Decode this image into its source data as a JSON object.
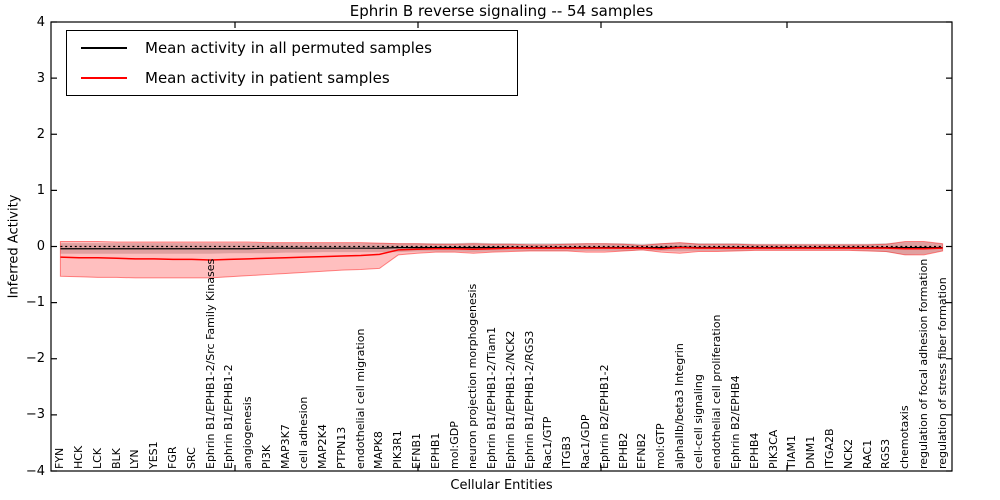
{
  "chart_data": {
    "type": "line",
    "title": "Ephrin B reverse signaling -- 54 samples",
    "xlabel": "Cellular Entities",
    "ylabel": "Inferred Activity",
    "ylim": [
      -4,
      4
    ],
    "yticks": [
      4,
      3,
      2,
      1,
      0,
      -1,
      -2,
      -3,
      -4
    ],
    "grid": false,
    "legend_position": "upper left",
    "colors": {
      "permuted_line": "#000000",
      "patient_line": "#ff0000",
      "permuted_band": "rgba(0,0,0,0.16)",
      "patient_band": "rgba(255,0,0,0.25)",
      "patient_band_edge": "rgba(255,0,0,0.45)"
    },
    "categories": [
      "FYN",
      "HCK",
      "LCK",
      "BLK",
      "LYN",
      "YES1",
      "FGR",
      "SRC",
      "Ephrin B1/EPHB1-2/Src Family Kinases",
      "Ephrin B1/EPHB1-2",
      "angiogenesis",
      "PI3K",
      "MAP3K7",
      "cell adhesion",
      "MAP2K4",
      "PTPN13",
      "endothelial cell migration",
      "MAPK8",
      "PIK3R1",
      "EFNB1",
      "EPHB1",
      "mol:GDP",
      "neuron projection morphogenesis",
      "Ephrin B1/EPHB1-2/Tiam1",
      "Ephrin B1/EPHB1-2/NCK2",
      "Ephrin B1/EPHB1-2/RGS3",
      "Rac1/GTP",
      "ITGB3",
      "Rac1/GDP",
      "Ephrin B2/EPHB1-2",
      "EPHB2",
      "EFNB2",
      "mol:GTP",
      "alphaIIb/beta3 Integrin",
      "cell-cell signaling",
      "endothelial cell proliferation",
      "Ephrin B2/EPHB4",
      "EPHB4",
      "PIK3CA",
      "TIAM1",
      "DNM1",
      "ITGA2B",
      "NCK2",
      "RAC1",
      "RGS3",
      "chemotaxis",
      "regulation of focal adhesion formation",
      "regulation of stress fiber formation"
    ],
    "series": [
      {
        "name": "Mean activity in all permuted samples",
        "color": "#000000",
        "values": [
          -0.04,
          -0.04,
          -0.04,
          -0.04,
          -0.04,
          -0.04,
          -0.04,
          -0.04,
          -0.04,
          -0.04,
          -0.04,
          -0.03,
          -0.03,
          -0.03,
          -0.03,
          -0.03,
          -0.03,
          -0.03,
          -0.02,
          -0.02,
          -0.02,
          -0.02,
          -0.02,
          -0.02,
          -0.02,
          -0.02,
          -0.02,
          -0.02,
          -0.02,
          -0.02,
          -0.02,
          -0.02,
          -0.02,
          -0.01,
          -0.02,
          -0.02,
          -0.02,
          -0.02,
          -0.02,
          -0.02,
          -0.02,
          -0.02,
          -0.02,
          -0.02,
          -0.02,
          -0.02,
          -0.02,
          -0.02
        ]
      },
      {
        "name": "Mean activity in patient samples",
        "color": "#ff0000",
        "values": [
          -0.19,
          -0.2,
          -0.2,
          -0.21,
          -0.22,
          -0.22,
          -0.23,
          -0.23,
          -0.24,
          -0.23,
          -0.22,
          -0.21,
          -0.2,
          -0.19,
          -0.18,
          -0.17,
          -0.16,
          -0.14,
          -0.06,
          -0.05,
          -0.04,
          -0.04,
          -0.05,
          -0.04,
          -0.03,
          -0.03,
          -0.03,
          -0.03,
          -0.03,
          -0.03,
          -0.03,
          -0.03,
          -0.04,
          -0.02,
          -0.03,
          -0.03,
          -0.03,
          -0.03,
          -0.03,
          -0.03,
          -0.03,
          -0.03,
          -0.03,
          -0.03,
          -0.03,
          -0.04,
          -0.04,
          -0.03
        ]
      }
    ],
    "bands": [
      {
        "name": "permuted-samples-band",
        "upper": [
          0.06,
          0.06,
          0.06,
          0.06,
          0.06,
          0.06,
          0.06,
          0.06,
          0.06,
          0.06,
          0.06,
          0.06,
          0.06,
          0.06,
          0.06,
          0.06,
          0.06,
          0.06,
          0.06,
          0.06,
          0.06,
          0.06,
          0.07,
          0.06,
          0.06,
          0.06,
          0.06,
          0.06,
          0.06,
          0.06,
          0.06,
          0.05,
          0.06,
          0.07,
          0.06,
          0.06,
          0.06,
          0.05,
          0.05,
          0.05,
          0.05,
          0.05,
          0.05,
          0.05,
          0.06,
          0.08,
          0.08,
          0.05
        ],
        "lower": [
          -0.13,
          -0.13,
          -0.13,
          -0.13,
          -0.13,
          -0.13,
          -0.13,
          -0.13,
          -0.13,
          -0.12,
          -0.12,
          -0.12,
          -0.11,
          -0.11,
          -0.1,
          -0.1,
          -0.1,
          -0.1,
          -0.1,
          -0.09,
          -0.09,
          -0.09,
          -0.1,
          -0.09,
          -0.08,
          -0.08,
          -0.08,
          -0.08,
          -0.08,
          -0.08,
          -0.08,
          -0.07,
          -0.08,
          -0.09,
          -0.08,
          -0.08,
          -0.08,
          -0.07,
          -0.07,
          -0.07,
          -0.07,
          -0.07,
          -0.07,
          -0.08,
          -0.1,
          -0.15,
          -0.14,
          -0.08
        ]
      },
      {
        "name": "patient-samples-band",
        "upper": [
          0.09,
          0.09,
          0.09,
          0.08,
          0.08,
          0.08,
          0.08,
          0.08,
          0.08,
          0.08,
          0.08,
          0.07,
          0.07,
          0.07,
          0.07,
          0.07,
          0.07,
          0.06,
          0.05,
          0.05,
          0.04,
          0.04,
          0.05,
          0.04,
          0.04,
          0.03,
          0.03,
          0.04,
          0.05,
          0.05,
          0.04,
          0.02,
          0.05,
          0.07,
          0.04,
          0.04,
          0.04,
          0.03,
          0.03,
          0.03,
          0.03,
          0.03,
          0.03,
          0.03,
          0.04,
          0.09,
          0.09,
          0.05
        ],
        "lower": [
          -0.53,
          -0.54,
          -0.55,
          -0.55,
          -0.56,
          -0.56,
          -0.56,
          -0.56,
          -0.56,
          -0.54,
          -0.52,
          -0.5,
          -0.48,
          -0.46,
          -0.44,
          -0.42,
          -0.41,
          -0.39,
          -0.15,
          -0.12,
          -0.1,
          -0.1,
          -0.12,
          -0.1,
          -0.09,
          -0.08,
          -0.08,
          -0.08,
          -0.1,
          -0.1,
          -0.08,
          -0.06,
          -0.1,
          -0.12,
          -0.09,
          -0.09,
          -0.08,
          -0.07,
          -0.07,
          -0.07,
          -0.07,
          -0.07,
          -0.07,
          -0.08,
          -0.09,
          -0.15,
          -0.15,
          -0.08
        ]
      }
    ],
    "zero_line": {
      "value": 0,
      "style": "dashed",
      "color": "#000000"
    }
  }
}
